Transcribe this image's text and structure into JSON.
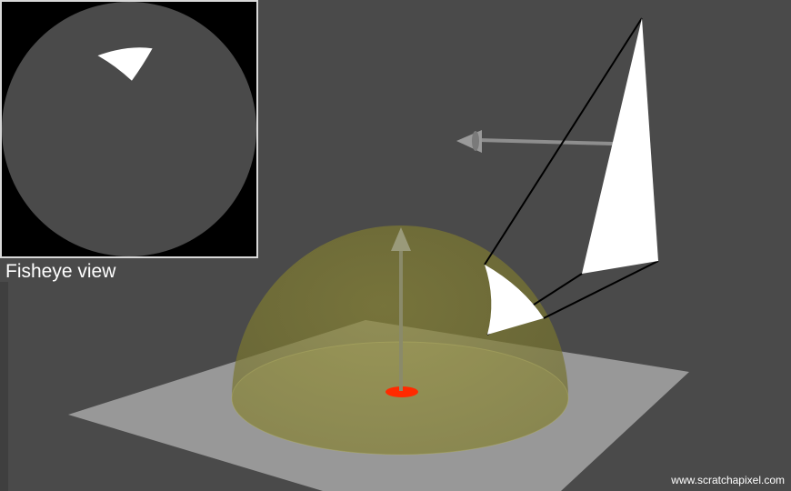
{
  "inset": {
    "label": "Fisheye view"
  },
  "watermark": {
    "text": "www.scratchapixel.com"
  },
  "colors": {
    "background": "#4a4a4a",
    "hemisphere": "#8f8a33",
    "ground_plane": "#a9a9a9",
    "triangle": "#ffffff",
    "origin_point": "#ff2a00",
    "fisheye_disk": "#4a4a4a",
    "fisheye_frame": "#000000",
    "projection_lines": "#000000"
  },
  "icons": {
    "normal_arrow": "arrow-up-icon",
    "light_arrow": "arrow-left-icon"
  }
}
